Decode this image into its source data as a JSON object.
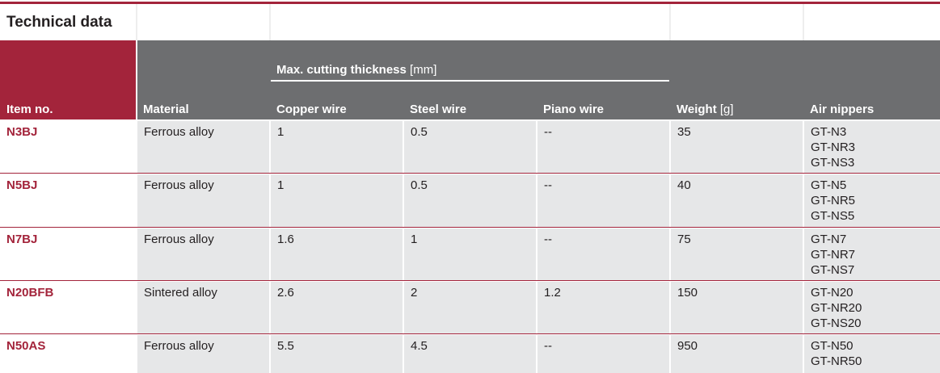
{
  "header": {
    "title": "Technical data"
  },
  "table": {
    "columns": {
      "item": "Item no.",
      "material": "Material",
      "group": {
        "name": "Max. cutting thickness",
        "unit": "[mm]"
      },
      "copper": "Copper wire",
      "steel": "Steel wire",
      "piano": "Piano wire",
      "weight": {
        "name": "Weight",
        "unit": "[g]"
      },
      "nippers": "Air nippers"
    },
    "rows": [
      [
        "N3BJ",
        "Ferrous alloy",
        "1",
        "0.5",
        "--",
        "35",
        [
          "GT-N3",
          "GT-NR3",
          "GT-NS3"
        ]
      ],
      [
        "N5BJ",
        "Ferrous alloy",
        "1",
        "0.5",
        "--",
        "40",
        [
          "GT-N5",
          "GT-NR5",
          "GT-NS5"
        ]
      ],
      [
        "N7BJ",
        "Ferrous alloy",
        "1.6",
        "1",
        "--",
        "75",
        [
          "GT-N7",
          "GT-NR7",
          "GT-NS7"
        ]
      ],
      [
        "N20BFB",
        "Sintered alloy",
        "2.6",
        "2",
        "1.2",
        "150",
        [
          "GT-N20",
          "GT-NR20",
          "GT-NS20"
        ]
      ],
      [
        "N50AS",
        "Ferrous alloy",
        "5.5",
        "4.5",
        "--",
        "950",
        [
          "GT-N50",
          "GT-NR50"
        ]
      ]
    ]
  }
}
